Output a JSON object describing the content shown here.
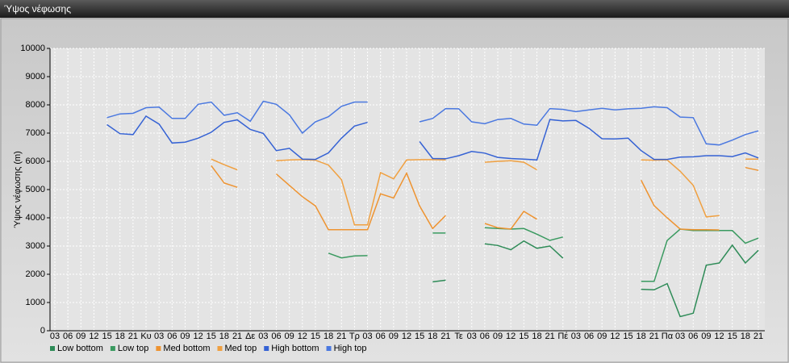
{
  "window_title": "Ύψος νέφωσης",
  "chart_data": {
    "type": "line",
    "y_label": "Ύψος νέφωσης (m)",
    "categories": [
      "03",
      "06",
      "09",
      "12",
      "15",
      "18",
      "21",
      "Κυ",
      "03",
      "06",
      "09",
      "12",
      "15",
      "18",
      "21",
      "Δε",
      "03",
      "06",
      "09",
      "12",
      "15",
      "18",
      "21",
      "Τρ",
      "03",
      "06",
      "09",
      "12",
      "15",
      "18",
      "21",
      "Τε",
      "03",
      "06",
      "09",
      "12",
      "15",
      "18",
      "21",
      "Πέ",
      "03",
      "06",
      "09",
      "12",
      "15",
      "18",
      "21",
      "Πα",
      "03",
      "06",
      "09",
      "12",
      "15",
      "18",
      "21"
    ],
    "ylim": [
      0,
      10000
    ],
    "yticks": [
      0,
      1000,
      2000,
      3000,
      4000,
      5000,
      6000,
      7000,
      8000,
      9000,
      10000
    ],
    "grid": true,
    "legend": "bottom",
    "series": [
      {
        "name": "Low bottom",
        "color": "#2e8b57",
        "values": [
          null,
          null,
          null,
          null,
          null,
          null,
          null,
          null,
          null,
          null,
          null,
          null,
          null,
          null,
          null,
          null,
          null,
          null,
          null,
          null,
          null,
          null,
          null,
          null,
          null,
          null,
          null,
          null,
          null,
          1730,
          1790,
          null,
          null,
          3080,
          3020,
          2870,
          3180,
          2920,
          3000,
          2570,
          null,
          null,
          null,
          null,
          null,
          1470,
          1450,
          1670,
          500,
          620,
          2320,
          2400,
          3030,
          2400,
          2850
        ]
      },
      {
        "name": "Low top",
        "color": "#3a9a60",
        "values": [
          null,
          null,
          null,
          null,
          null,
          null,
          null,
          null,
          null,
          null,
          null,
          null,
          null,
          null,
          null,
          null,
          null,
          null,
          null,
          null,
          null,
          2750,
          2580,
          2650,
          2660,
          null,
          null,
          null,
          null,
          3460,
          3460,
          null,
          null,
          3650,
          3620,
          3600,
          3620,
          3420,
          3200,
          3320,
          null,
          null,
          null,
          null,
          null,
          1750,
          1750,
          3200,
          3600,
          3550,
          3550,
          3550,
          3550,
          3100,
          3280
        ]
      },
      {
        "name": "Med bottom",
        "color": "#ee9330",
        "values": [
          null,
          null,
          null,
          null,
          null,
          null,
          null,
          null,
          null,
          null,
          null,
          null,
          5850,
          5230,
          5080,
          null,
          null,
          5550,
          5150,
          4750,
          4420,
          3580,
          3580,
          3580,
          3580,
          4850,
          4700,
          5580,
          4420,
          3620,
          4080,
          null,
          null,
          3800,
          3650,
          3600,
          4230,
          3950,
          null,
          null,
          null,
          null,
          null,
          null,
          null,
          5330,
          4430,
          4000,
          3600,
          3580,
          3580,
          3570,
          null,
          5780,
          5680
        ]
      },
      {
        "name": "Med top",
        "color": "#f0a040",
        "values": [
          null,
          null,
          null,
          null,
          null,
          null,
          null,
          null,
          null,
          null,
          null,
          null,
          6080,
          5880,
          5700,
          null,
          null,
          6020,
          6050,
          6060,
          6040,
          5870,
          5350,
          3750,
          3750,
          5600,
          5380,
          6050,
          6060,
          6060,
          6050,
          null,
          null,
          5970,
          6000,
          6020,
          5970,
          5700,
          null,
          null,
          null,
          null,
          null,
          null,
          null,
          6050,
          6040,
          6050,
          5650,
          5150,
          4030,
          4080,
          null,
          6080,
          6080
        ]
      },
      {
        "name": "High bottom",
        "color": "#3562d4",
        "values": [
          null,
          null,
          null,
          null,
          7300,
          6980,
          6950,
          7600,
          7320,
          6650,
          6680,
          6820,
          7030,
          7380,
          7470,
          7130,
          6990,
          6380,
          6460,
          6080,
          6070,
          6300,
          6820,
          7250,
          7380,
          null,
          null,
          null,
          6700,
          6100,
          6090,
          6200,
          6350,
          6290,
          6140,
          6100,
          6080,
          6050,
          7480,
          7430,
          7450,
          7170,
          6800,
          6790,
          6820,
          6380,
          6070,
          6070,
          6150,
          6160,
          6200,
          6200,
          6170,
          6300,
          6120
        ]
      },
      {
        "name": "High top",
        "color": "#4a78e0",
        "values": [
          null,
          null,
          null,
          null,
          7550,
          7680,
          7700,
          7900,
          7920,
          7520,
          7520,
          8020,
          8100,
          7630,
          7720,
          7420,
          8130,
          8020,
          7650,
          7000,
          7400,
          7580,
          7950,
          8100,
          8100,
          null,
          null,
          null,
          7400,
          7520,
          7870,
          7860,
          7400,
          7330,
          7480,
          7520,
          7320,
          7280,
          7870,
          7840,
          7760,
          7820,
          7880,
          7820,
          7860,
          7880,
          7930,
          7900,
          7570,
          7550,
          6620,
          6580,
          6750,
          6950,
          7080
        ]
      }
    ]
  }
}
